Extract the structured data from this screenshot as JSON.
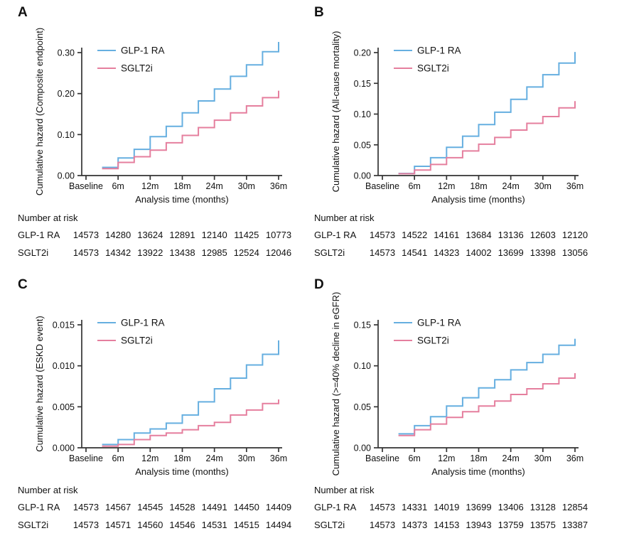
{
  "figure": {
    "background": "#ffffff",
    "axis_color": "#333333",
    "text_color": "#111111",
    "legend_labels": [
      "GLP-1 RA",
      "SGLT2i"
    ],
    "series_colors": {
      "glp1ra": "#66afe0",
      "sglt2i": "#e57f9e"
    }
  },
  "chart_data": [
    {
      "type": "line",
      "style": "step",
      "panel": "A",
      "ylabel": "Cumulative hazard (Composite endpoint)",
      "xlabel": "Analysis time (months)",
      "xtick_months": [
        0,
        6,
        12,
        18,
        24,
        30,
        36
      ],
      "xtick_labels": [
        "Baseline",
        "6m",
        "12m",
        "18m",
        "24m",
        "30m",
        "36m"
      ],
      "ytick_values": [
        0.0,
        0.1,
        0.2,
        0.3
      ],
      "ytick_labels": [
        "0.00",
        "0.10",
        "0.20",
        "0.30"
      ],
      "ylim": [
        0,
        0.335
      ],
      "x_months": [
        3,
        6,
        9,
        12,
        15,
        18,
        21,
        24,
        27,
        30,
        33,
        36
      ],
      "legend_position": "top-left-inside",
      "series": [
        {
          "name": "GLP-1 RA",
          "color": "#66afe0",
          "values": [
            0.02,
            0.043,
            0.064,
            0.095,
            0.12,
            0.153,
            0.182,
            0.211,
            0.242,
            0.27,
            0.302,
            0.326
          ]
        },
        {
          "name": "SGLT2i",
          "color": "#e57f9e",
          "values": [
            0.017,
            0.032,
            0.046,
            0.062,
            0.08,
            0.098,
            0.117,
            0.135,
            0.153,
            0.17,
            0.19,
            0.207
          ]
        }
      ],
      "risk_table": {
        "title": "Number at risk",
        "rows": [
          {
            "label": "GLP-1 RA",
            "values": [
              14573,
              14280,
              13624,
              12891,
              12140,
              11425,
              10773
            ]
          },
          {
            "label": "SGLT2i",
            "values": [
              14573,
              14342,
              13922,
              13438,
              12985,
              12524,
              12046
            ]
          }
        ]
      }
    },
    {
      "type": "line",
      "style": "step",
      "panel": "B",
      "ylabel": "Cumulative hazard (All-cause mortality)",
      "xlabel": "Analysis time (months)",
      "xtick_months": [
        0,
        6,
        12,
        18,
        24,
        30,
        36
      ],
      "xtick_labels": [
        "Baseline",
        "6m",
        "12m",
        "18m",
        "24m",
        "30m",
        "36m"
      ],
      "ytick_values": [
        0.0,
        0.05,
        0.1,
        0.15,
        0.2
      ],
      "ytick_labels": [
        "0.00",
        "0.05",
        "0.10",
        "0.15",
        "0.20"
      ],
      "ylim": [
        0,
        0.21
      ],
      "x_months": [
        3,
        6,
        9,
        12,
        15,
        18,
        21,
        24,
        27,
        30,
        33,
        36
      ],
      "legend_position": "top-left-inside",
      "series": [
        {
          "name": "GLP-1 RA",
          "color": "#66afe0",
          "values": [
            0.0035,
            0.015,
            0.029,
            0.046,
            0.064,
            0.083,
            0.103,
            0.124,
            0.144,
            0.164,
            0.183,
            0.201
          ]
        },
        {
          "name": "SGLT2i",
          "color": "#e57f9e",
          "values": [
            0.003,
            0.009,
            0.018,
            0.029,
            0.04,
            0.051,
            0.062,
            0.074,
            0.085,
            0.096,
            0.11,
            0.121
          ]
        }
      ],
      "risk_table": {
        "title": "Number at risk",
        "rows": [
          {
            "label": "GLP-1 RA",
            "values": [
              14573,
              14522,
              14161,
              13684,
              13136,
              12603,
              12120
            ]
          },
          {
            "label": "SGLT2i",
            "values": [
              14573,
              14541,
              14323,
              14002,
              13699,
              13398,
              13056
            ]
          }
        ]
      }
    },
    {
      "type": "line",
      "style": "step",
      "panel": "C",
      "ylabel": "Cumulative hazard (ESKD event)",
      "xlabel": "Analysis time (months)",
      "xtick_months": [
        0,
        6,
        12,
        18,
        24,
        30,
        36
      ],
      "xtick_labels": [
        "Baseline",
        "6m",
        "12m",
        "18m",
        "24m",
        "30m",
        "36m"
      ],
      "ytick_values": [
        0.0,
        0.005,
        0.01,
        0.015
      ],
      "ytick_labels": [
        "0.000",
        "0.005",
        "0.010",
        "0.015"
      ],
      "ylim": [
        0,
        0.0157
      ],
      "x_months": [
        3,
        6,
        9,
        12,
        15,
        18,
        21,
        24,
        27,
        30,
        33,
        36
      ],
      "legend_position": "top-left-inside",
      "series": [
        {
          "name": "GLP-1 RA",
          "color": "#66afe0",
          "values": [
            0.0004,
            0.001,
            0.0018,
            0.0023,
            0.003,
            0.004,
            0.0056,
            0.0072,
            0.0085,
            0.0101,
            0.0114,
            0.0131
          ]
        },
        {
          "name": "SGLT2i",
          "color": "#e57f9e",
          "values": [
            0.0002,
            0.0004,
            0.001,
            0.0015,
            0.0018,
            0.0022,
            0.0027,
            0.0031,
            0.004,
            0.0046,
            0.0054,
            0.0059
          ]
        }
      ],
      "risk_table": {
        "title": "Number at risk",
        "rows": [
          {
            "label": "GLP-1 RA",
            "values": [
              14573,
              14567,
              14545,
              14528,
              14491,
              14450,
              14409
            ]
          },
          {
            "label": "SGLT2i",
            "values": [
              14573,
              14571,
              14560,
              14546,
              14531,
              14515,
              14494
            ]
          }
        ]
      }
    },
    {
      "type": "line",
      "style": "step",
      "panel": "D",
      "ylabel": "Cumulative hazard (>=40% decline in eGFR)",
      "xlabel": "Analysis time (months)",
      "xtick_months": [
        0,
        6,
        12,
        18,
        24,
        30,
        36
      ],
      "xtick_labels": [
        "Baseline",
        "6m",
        "12m",
        "18m",
        "24m",
        "30m",
        "36m"
      ],
      "ytick_values": [
        0.0,
        0.05,
        0.1,
        0.15
      ],
      "ytick_labels": [
        "0.00",
        "0.05",
        "0.10",
        "0.15"
      ],
      "ylim": [
        0,
        0.157
      ],
      "x_months": [
        3,
        6,
        9,
        12,
        15,
        18,
        21,
        24,
        27,
        30,
        33,
        36
      ],
      "legend_position": "top-left-inside",
      "series": [
        {
          "name": "GLP-1 RA",
          "color": "#66afe0",
          "values": [
            0.017,
            0.027,
            0.038,
            0.051,
            0.061,
            0.073,
            0.083,
            0.095,
            0.104,
            0.114,
            0.125,
            0.133
          ]
        },
        {
          "name": "SGLT2i",
          "color": "#e57f9e",
          "values": [
            0.015,
            0.022,
            0.029,
            0.037,
            0.044,
            0.051,
            0.057,
            0.065,
            0.072,
            0.078,
            0.085,
            0.091
          ]
        }
      ],
      "risk_table": {
        "title": "Number at risk",
        "rows": [
          {
            "label": "GLP-1 RA",
            "values": [
              14573,
              14331,
              14019,
              13699,
              13406,
              13128,
              12854
            ]
          },
          {
            "label": "SGLT2i",
            "values": [
              14573,
              14373,
              14153,
              13943,
              13759,
              13575,
              13387
            ]
          }
        ]
      }
    }
  ]
}
